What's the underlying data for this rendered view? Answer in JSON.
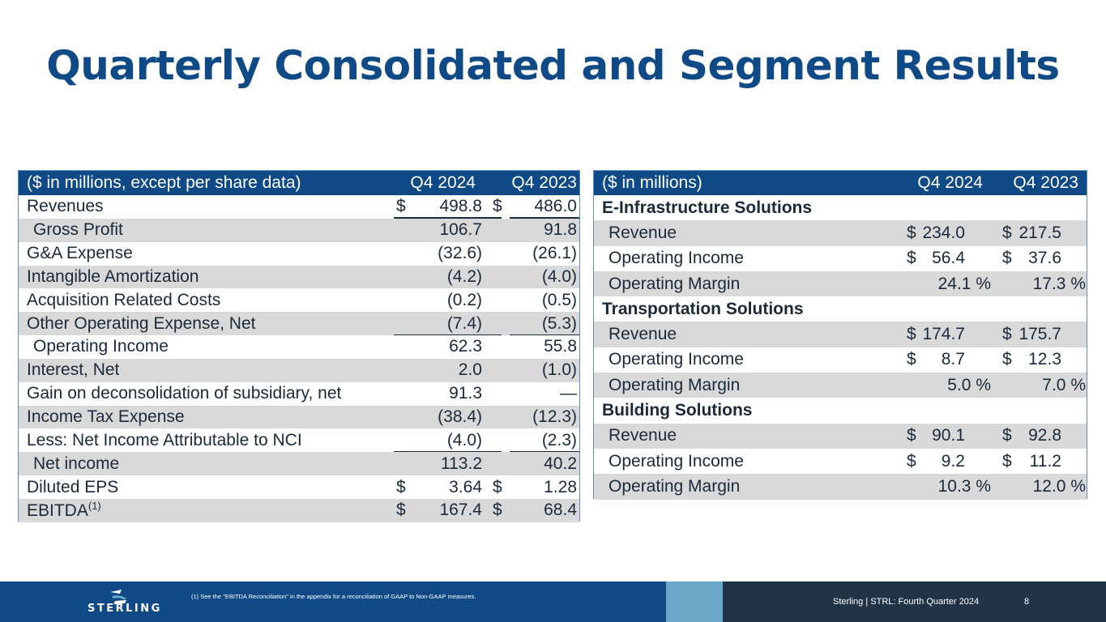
{
  "title": "Quarterly Consolidated and Segment Results",
  "consolidated": {
    "header": {
      "label": "($ in millions, except per share data)",
      "col1": "Q4 2024",
      "col2": "Q4 2023"
    },
    "rows": [
      {
        "label": "Revenues",
        "dollar1": "$",
        "v1": "498.8",
        "dollar2": "$",
        "v2": "486.0"
      },
      {
        "label": "Gross Profit",
        "v1": "106.7",
        "v2": "91.8"
      },
      {
        "label": "G&A Expense",
        "v1": "(32.6)",
        "v2": "(26.1)"
      },
      {
        "label": "Intangible Amortization",
        "v1": "(4.2)",
        "v2": "(4.0)"
      },
      {
        "label": "Acquisition Related Costs",
        "v1": "(0.2)",
        "v2": "(0.5)"
      },
      {
        "label": "Other Operating Expense, Net",
        "v1": "(7.4)",
        "v2": "(5.3)"
      },
      {
        "label": "Operating Income",
        "v1": "62.3",
        "v2": "55.8"
      },
      {
        "label": "Interest, Net",
        "v1": "2.0",
        "v2": "(1.0)"
      },
      {
        "label": "Gain on deconsolidation of subsidiary, net",
        "v1": "91.3",
        "v2": "—"
      },
      {
        "label": "Income Tax Expense",
        "v1": "(38.4)",
        "v2": "(12.3)"
      },
      {
        "label": "Less: Net Income Attributable to NCI",
        "v1": "(4.0)",
        "v2": "(2.3)"
      },
      {
        "label": "Net income",
        "v1": "113.2",
        "v2": "40.2"
      },
      {
        "label": "Diluted EPS",
        "dollar1": "$",
        "v1": "3.64",
        "dollar2": "$",
        "v2": "1.28"
      },
      {
        "label": "EBITDA",
        "sup": "(1)",
        "dollar1": "$",
        "v1": "167.4",
        "dollar2": "$",
        "v2": "68.4"
      }
    ]
  },
  "segments": {
    "header": {
      "label": "($ in millions)",
      "col1": "Q4 2024",
      "col2": "Q4 2023"
    },
    "groups": [
      {
        "name": "E-Infrastructure Solutions",
        "revenue": {
          "label": "Revenue",
          "d1": "$",
          "v1": "234.0",
          "d2": "$",
          "v2": "217.5"
        },
        "op_income": {
          "label": "Operating Income",
          "d1": "$",
          "v1": "56.4",
          "d2": "$",
          "v2": "37.6"
        },
        "op_margin": {
          "label": "Operating Margin",
          "v1": "24.1 %",
          "v2": "17.3 %"
        }
      },
      {
        "name": "Transportation Solutions",
        "revenue": {
          "label": "Revenue",
          "d1": "$",
          "v1": "174.7",
          "d2": "$",
          "v2": "175.7"
        },
        "op_income": {
          "label": "Operating Income",
          "d1": "$",
          "v1": "8.7",
          "d2": "$",
          "v2": "12.3"
        },
        "op_margin": {
          "label": "Operating Margin",
          "v1": "5.0 %",
          "v2": "7.0 %"
        }
      },
      {
        "name": "Building Solutions",
        "revenue": {
          "label": "Revenue",
          "d1": "$",
          "v1": "90.1",
          "d2": "$",
          "v2": "92.8"
        },
        "op_income": {
          "label": "Operating Income",
          "d1": "$",
          "v1": "9.2",
          "d2": "$",
          "v2": "11.2"
        },
        "op_margin": {
          "label": "Operating Margin",
          "v1": "10.3 %",
          "v2": "12.0 %"
        }
      }
    ]
  },
  "footer": {
    "logo_text": "STERLING",
    "footnote": "(1)  See the \"EBITDA Reconciliation\" in the appendix for a reconciliation of GAAP to Non-GAAP measures.",
    "info": "Sterling | STRL:  Fourth Quarter  2024",
    "page": "8"
  },
  "colors": {
    "brand_blue": "#0f4a86",
    "row_shade": "#d9d9d9",
    "footer_accent": "#6aa9c7",
    "footer_dark": "#203347"
  },
  "icons": {
    "logo": "sterling-logo-mark"
  }
}
